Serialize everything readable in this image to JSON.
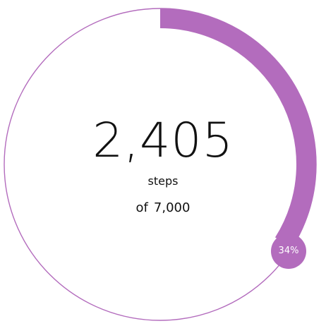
{
  "steps": {
    "count": "2,405",
    "unit_label": "steps",
    "goal_prefix": "of",
    "goal_value": "7,000"
  },
  "progress": {
    "fraction": 0.34,
    "percent_label": "34%"
  },
  "colors": {
    "accent": "#b36cbd",
    "track": "#b36cbd",
    "text": "#111111",
    "background": "#ffffff"
  }
}
